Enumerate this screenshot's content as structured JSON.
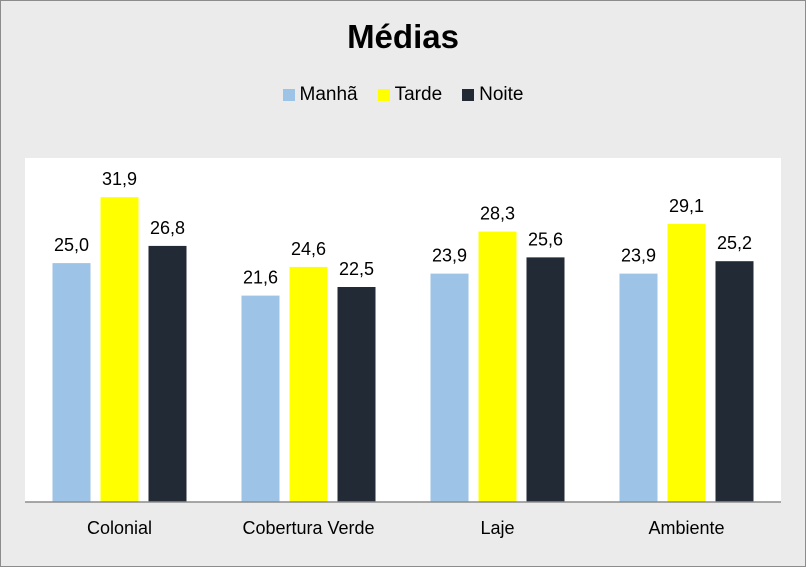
{
  "chart_data": {
    "type": "bar",
    "title": "Médias",
    "categories": [
      "Colonial",
      "Cobertura Verde",
      "Laje",
      "Ambiente"
    ],
    "series": [
      {
        "name": "Manhã",
        "color": "#9dc3e6",
        "values": [
          25.0,
          21.6,
          23.9,
          23.9
        ],
        "labels": [
          "25,0",
          "21,6",
          "23,9",
          "23,9"
        ]
      },
      {
        "name": "Tarde",
        "color": "#ffff00",
        "values": [
          31.9,
          24.6,
          28.3,
          29.1
        ],
        "labels": [
          "31,9",
          "24,6",
          "28,3",
          "29,1"
        ]
      },
      {
        "name": "Noite",
        "color": "#222a35",
        "values": [
          26.8,
          22.5,
          25.6,
          25.2
        ],
        "labels": [
          "26,8",
          "22,5",
          "25,6",
          "25,2"
        ]
      }
    ],
    "ylim": [
      0,
      36
    ],
    "grid": false,
    "legend_position": "top",
    "xlabel": "",
    "ylabel": ""
  },
  "colors": {
    "chart_area": "#ebebeb",
    "plot_area": "#ffffff",
    "axis": "#8c8c8c"
  }
}
